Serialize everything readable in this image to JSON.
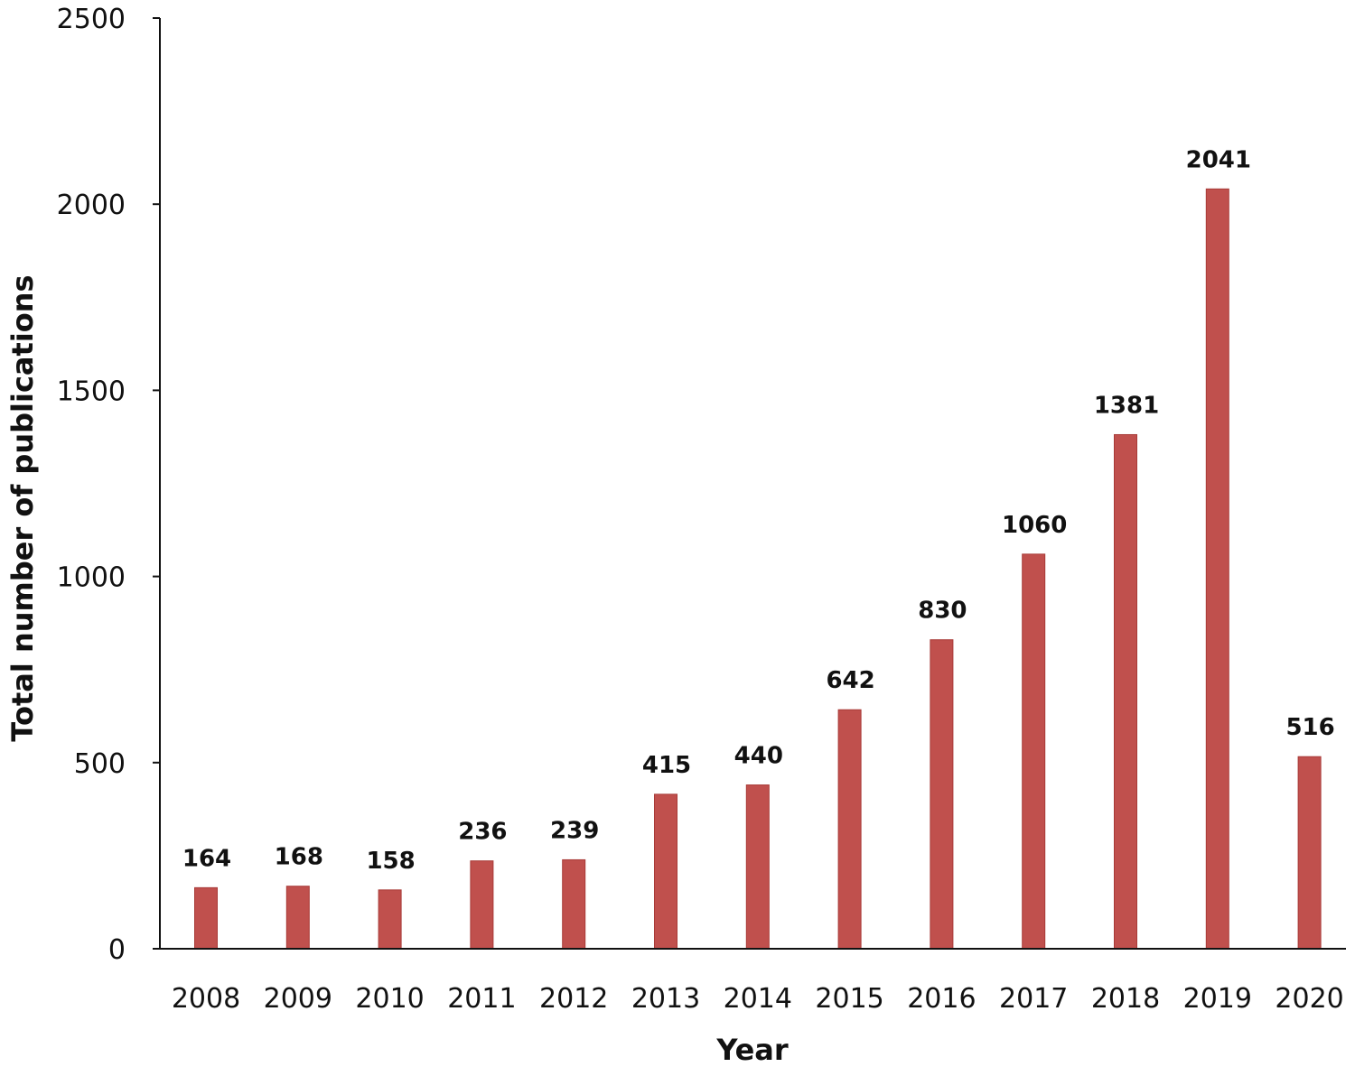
{
  "chart_data": {
    "type": "bar",
    "title": "",
    "xlabel": "Year",
    "ylabel": "Total number of publications",
    "ylim": [
      0,
      2500
    ],
    "yticks": [
      0,
      500,
      1000,
      1500,
      2000,
      2500
    ],
    "grid": false,
    "bar_color": "#C0504D",
    "bar_edge_color": "#A83A37",
    "categories": [
      "2008",
      "2009",
      "2010",
      "2011",
      "2012",
      "2013",
      "2014",
      "2015",
      "2016",
      "2017",
      "2018",
      "2019",
      "2020"
    ],
    "values": [
      164,
      168,
      158,
      236,
      239,
      415,
      440,
      642,
      830,
      1060,
      1381,
      2041,
      516
    ]
  }
}
